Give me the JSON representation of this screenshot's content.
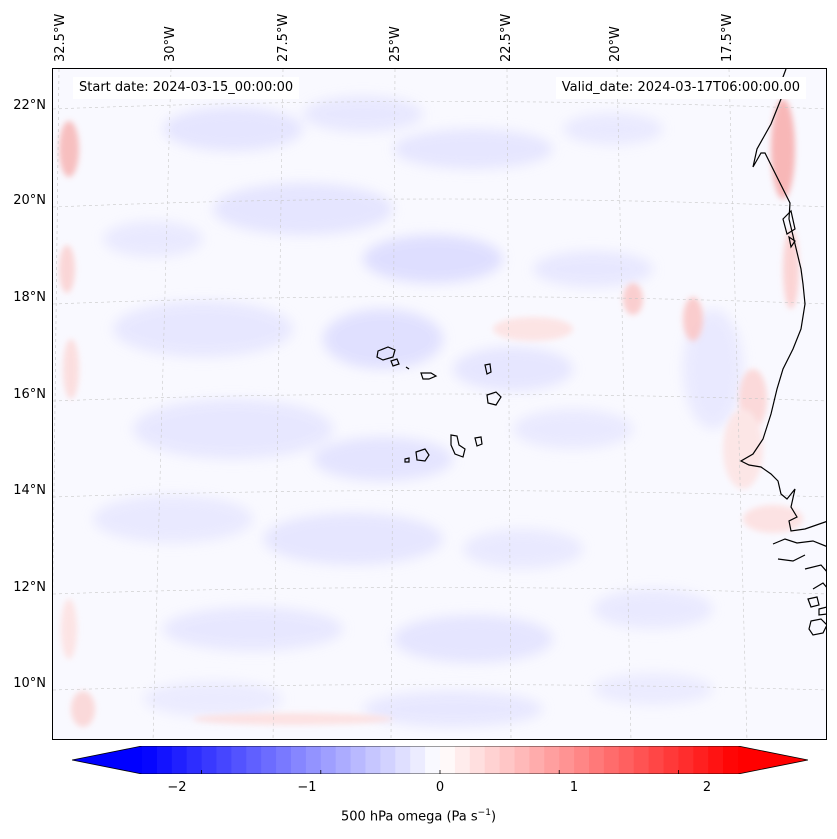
{
  "map": {
    "start_date_text": "Start date: 2024-03-15_00:00:00",
    "valid_date_text": "Valid_date: 2024-03-17T06:00:00.00",
    "lon_labels": [
      "32.5°W",
      "30°W",
      "27.5°W",
      "25°W",
      "22.5°W",
      "20°W",
      "17.5°W"
    ],
    "lat_labels": [
      "22°N",
      "20°N",
      "18°N",
      "16°N",
      "14°N",
      "12°N",
      "10°N"
    ],
    "extent": {
      "lon_min": -33.0,
      "lon_max": -16.0,
      "lat_min": 8.8,
      "lat_max": 22.8
    },
    "features": [
      "Cabo Verde islands coastlines",
      "West African coastline (Mauritania, Senegal, Gambia, Guinea-Bissau)"
    ]
  },
  "colorbar": {
    "ticks": [
      "−2",
      "−1",
      "0",
      "1",
      "2"
    ],
    "tick_values": [
      -2,
      -1,
      0,
      1,
      2
    ],
    "range": [
      -2.5,
      2.5
    ],
    "extend": "both",
    "label": "500 hPa omega (Pa s",
    "label_sup": "−1",
    "label_end": ")",
    "colormap": "bwr",
    "low_color": "#0000ff",
    "mid_color": "#ffffff",
    "high_color": "#ff0000"
  }
}
